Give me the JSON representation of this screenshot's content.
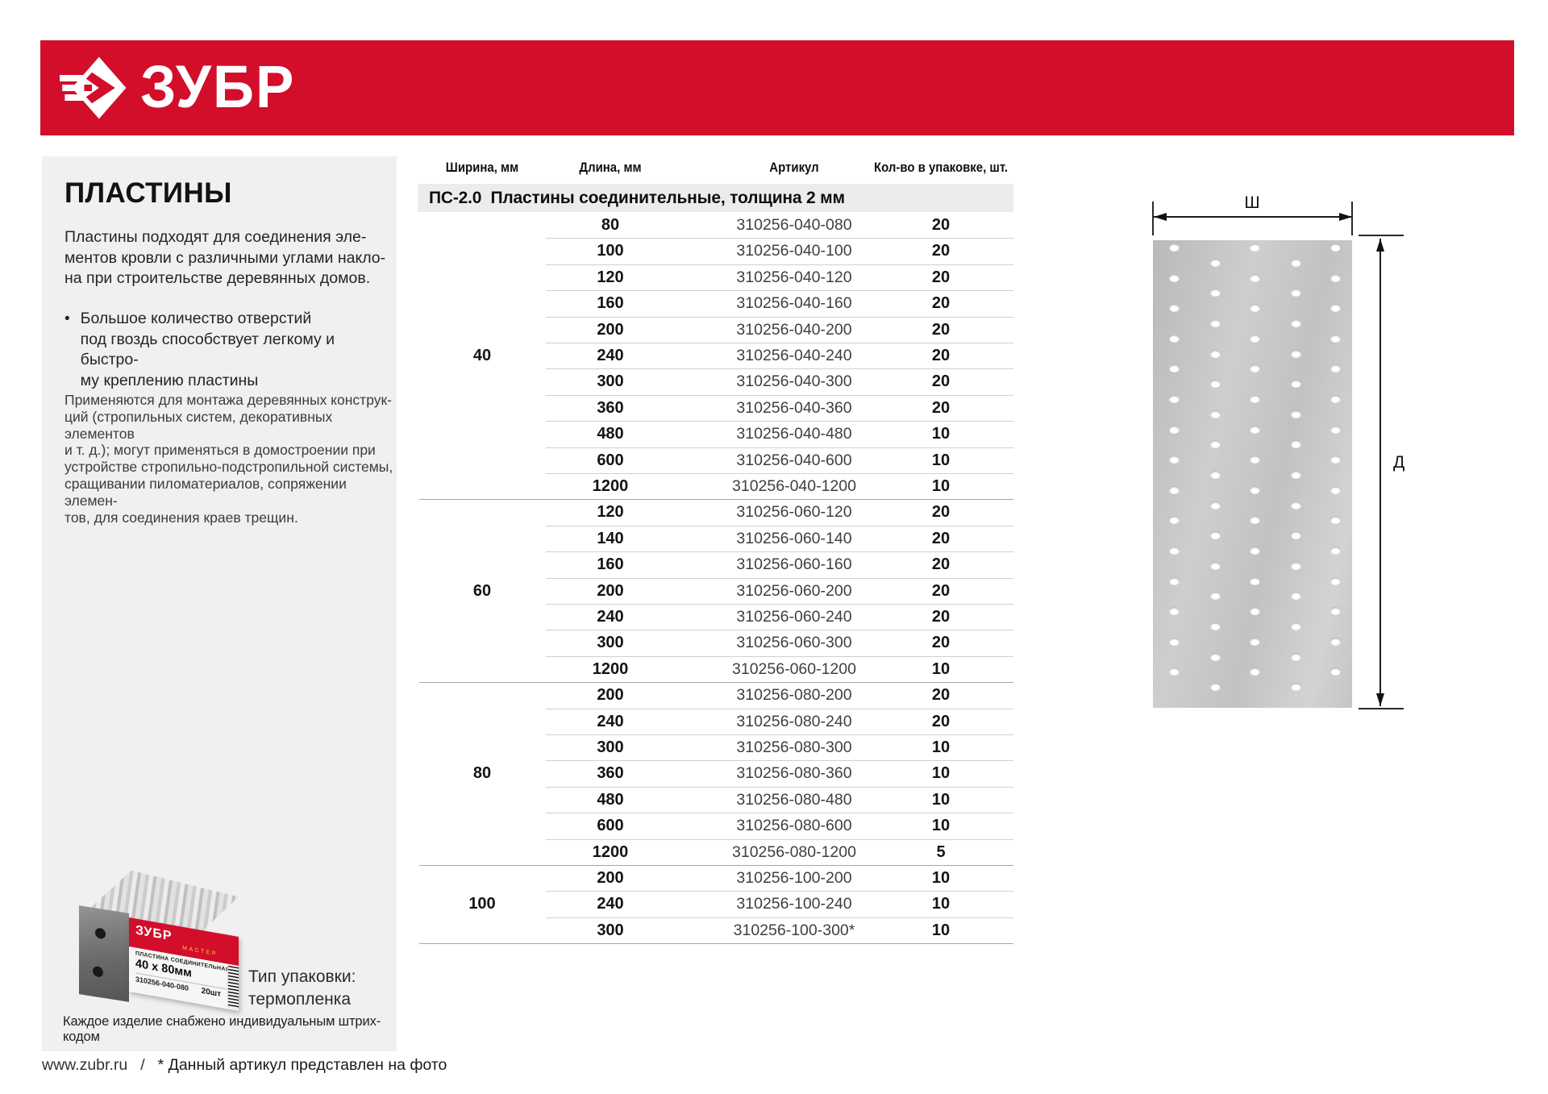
{
  "brand": {
    "name": "ЗУБР",
    "accent_red": "#d20e2b"
  },
  "sidebar": {
    "title": "ПЛАСТИНЫ",
    "intro_lines": [
      "Пластины подходят для соединения эле-",
      "ментов кровли с различными углами накло-",
      "на при строительстве деревянных домов."
    ],
    "bullet_marker": "•",
    "bullet_lines": [
      "Большое количество отверстий",
      "под гвоздь способствует легкому и быстро-",
      "му креплению пластины"
    ],
    "body_lines": [
      "Применяются для монтажа деревянных конструк-",
      "ций (стропильных систем, декоративных элементов",
      "и т. д.); могут применяться в домостроении при",
      "устройстве стропильно-подстропильной системы,",
      "сращивании пиломатериалов, сопряжении элемен-",
      "тов, для соединения краев трещин."
    ],
    "package_photo": {
      "brand": "ЗУБР",
      "series": "МАСТЕР",
      "product_name": "ПЛАСТИНА СОЕДИНИТЕЛЬНАЯ",
      "size": "40 х 80мм",
      "article": "310256-040-080",
      "quantity": "20шт"
    },
    "package_type_lines": [
      "Тип упаковки:",
      "термопленка"
    ],
    "barcode_note": "Каждое изделие снабжено индивидуальным штрих-кодом"
  },
  "table": {
    "columns": {
      "width": "Ширина, мм",
      "length": "Длина, мм",
      "article": "Артикул",
      "qty": "Кол-во в упаковке, шт."
    },
    "section_title": "ПС-2.0  Пластины соединительные, толщина 2 мм",
    "groups": [
      {
        "width": "40",
        "rows": [
          {
            "length": "80",
            "article": "310256-040-080",
            "qty": "20"
          },
          {
            "length": "100",
            "article": "310256-040-100",
            "qty": "20"
          },
          {
            "length": "120",
            "article": "310256-040-120",
            "qty": "20"
          },
          {
            "length": "160",
            "article": "310256-040-160",
            "qty": "20"
          },
          {
            "length": "200",
            "article": "310256-040-200",
            "qty": "20"
          },
          {
            "length": "240",
            "article": "310256-040-240",
            "qty": "20"
          },
          {
            "length": "300",
            "article": "310256-040-300",
            "qty": "20"
          },
          {
            "length": "360",
            "article": "310256-040-360",
            "qty": "20"
          },
          {
            "length": "480",
            "article": "310256-040-480",
            "qty": "10"
          },
          {
            "length": "600",
            "article": "310256-040-600",
            "qty": "10"
          },
          {
            "length": "1200",
            "article": "310256-040-1200",
            "qty": "10"
          }
        ]
      },
      {
        "width": "60",
        "rows": [
          {
            "length": "120",
            "article": "310256-060-120",
            "qty": "20"
          },
          {
            "length": "140",
            "article": "310256-060-140",
            "qty": "20"
          },
          {
            "length": "160",
            "article": "310256-060-160",
            "qty": "20"
          },
          {
            "length": "200",
            "article": "310256-060-200",
            "qty": "20"
          },
          {
            "length": "240",
            "article": "310256-060-240",
            "qty": "20"
          },
          {
            "length": "300",
            "article": "310256-060-300",
            "qty": "20"
          },
          {
            "length": "1200",
            "article": "310256-060-1200",
            "qty": "10"
          }
        ]
      },
      {
        "width": "80",
        "rows": [
          {
            "length": "200",
            "article": "310256-080-200",
            "qty": "20"
          },
          {
            "length": "240",
            "article": "310256-080-240",
            "qty": "20"
          },
          {
            "length": "300",
            "article": "310256-080-300",
            "qty": "10"
          },
          {
            "length": "360",
            "article": "310256-080-360",
            "qty": "10"
          },
          {
            "length": "480",
            "article": "310256-080-480",
            "qty": "10"
          },
          {
            "length": "600",
            "article": "310256-080-600",
            "qty": "10"
          },
          {
            "length": "1200",
            "article": "310256-080-1200",
            "qty": "5"
          }
        ]
      },
      {
        "width": "100",
        "rows": [
          {
            "length": "200",
            "article": "310256-100-200",
            "qty": "10"
          },
          {
            "length": "240",
            "article": "310256-100-240",
            "qty": "10"
          },
          {
            "length": "300",
            "article": "310256-100-300*",
            "qty": "10"
          }
        ]
      }
    ]
  },
  "diagram": {
    "width_label": "Ш",
    "length_label": "Д"
  },
  "footer": {
    "site": "www.zubr.ru",
    "separator": "/",
    "note": "* Данный артикул представлен на фото"
  }
}
